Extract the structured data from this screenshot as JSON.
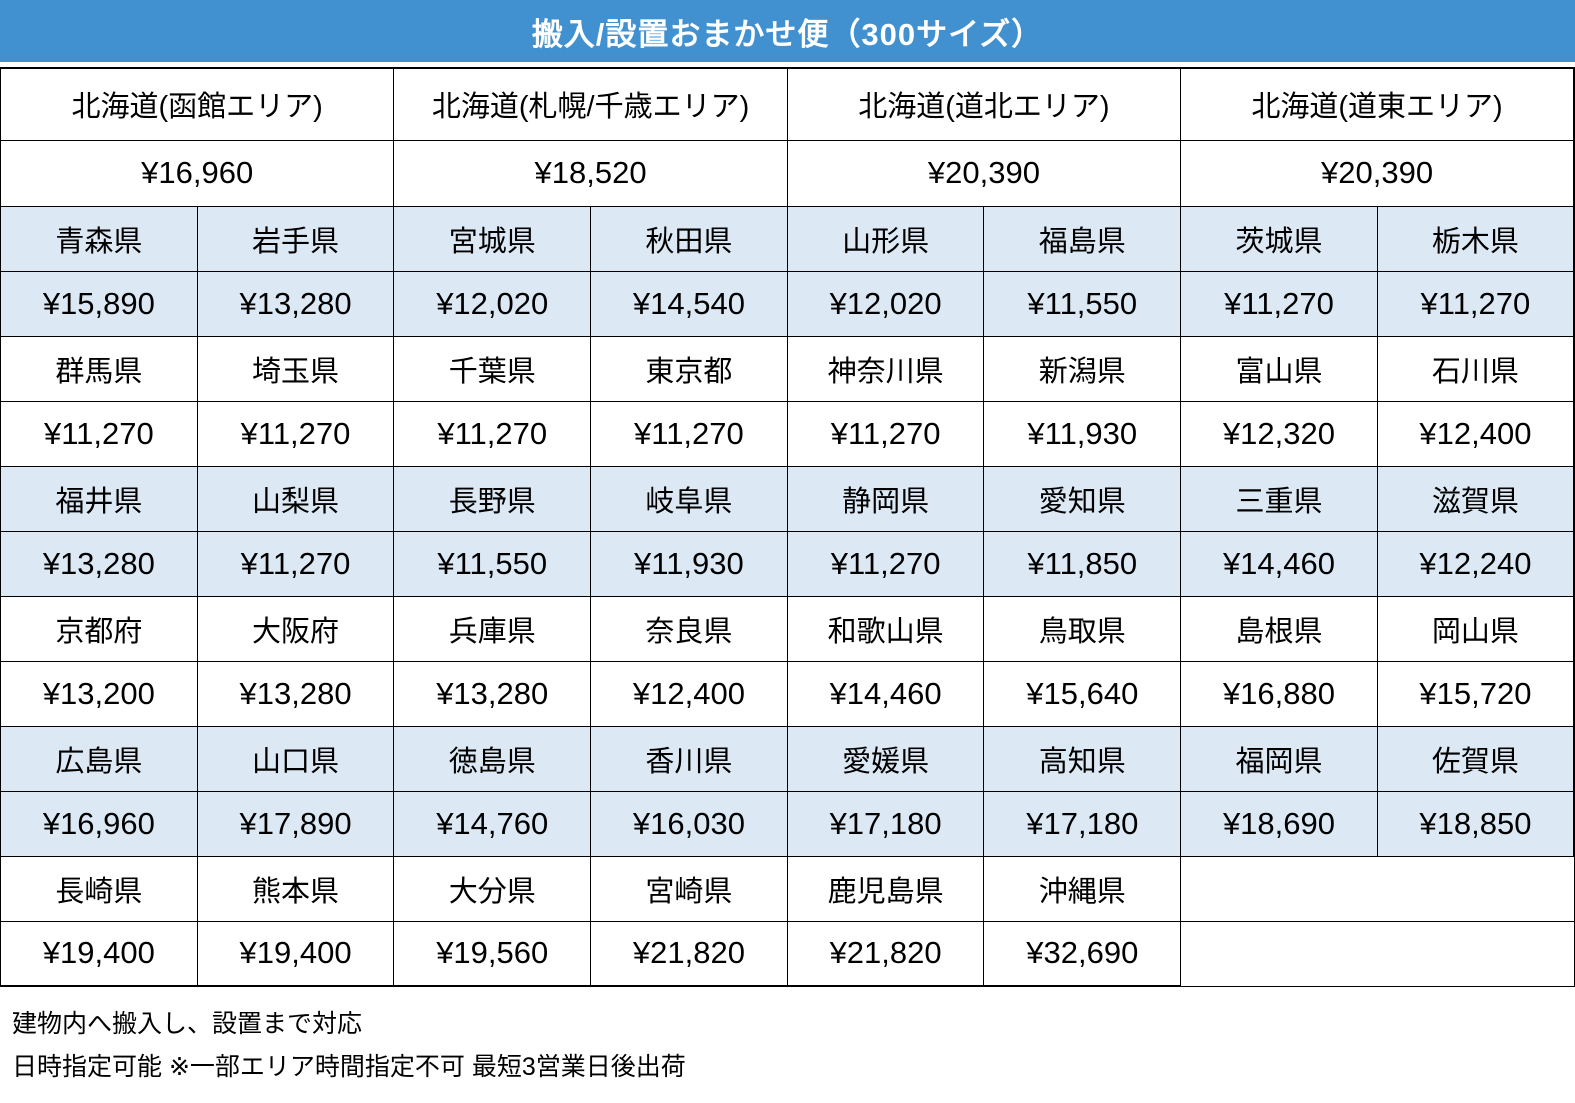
{
  "colors": {
    "header_bg": "#4190D0",
    "header_fg": "#FFFFFF",
    "shaded_row_bg": "#DCE9F5",
    "border": "#000000",
    "text": "#000000"
  },
  "chart_data": {
    "type": "table",
    "title": "搬入/設置おまかせ便（300サイズ）",
    "currency": "JPY",
    "columns_per_row": 8,
    "hokkaido_areas": [
      {
        "name": "北海道(函館エリア)",
        "price": "¥16,960",
        "price_value": 16960
      },
      {
        "name": "北海道(札幌/千歳エリア)",
        "price": "¥18,520",
        "price_value": 18520
      },
      {
        "name": "北海道(道北エリア)",
        "price": "¥20,390",
        "price_value": 20390
      },
      {
        "name": "北海道(道東エリア)",
        "price": "¥20,390",
        "price_value": 20390
      }
    ],
    "prefecture_blocks": [
      {
        "shaded": true,
        "cells": [
          {
            "name": "青森県",
            "price": "¥15,890",
            "price_value": 15890
          },
          {
            "name": "岩手県",
            "price": "¥13,280",
            "price_value": 13280
          },
          {
            "name": "宮城県",
            "price": "¥12,020",
            "price_value": 12020
          },
          {
            "name": "秋田県",
            "price": "¥14,540",
            "price_value": 14540
          },
          {
            "name": "山形県",
            "price": "¥12,020",
            "price_value": 12020
          },
          {
            "name": "福島県",
            "price": "¥11,550",
            "price_value": 11550
          },
          {
            "name": "茨城県",
            "price": "¥11,270",
            "price_value": 11270
          },
          {
            "name": "栃木県",
            "price": "¥11,270",
            "price_value": 11270
          }
        ]
      },
      {
        "shaded": false,
        "cells": [
          {
            "name": "群馬県",
            "price": "¥11,270",
            "price_value": 11270
          },
          {
            "name": "埼玉県",
            "price": "¥11,270",
            "price_value": 11270
          },
          {
            "name": "千葉県",
            "price": "¥11,270",
            "price_value": 11270
          },
          {
            "name": "東京都",
            "price": "¥11,270",
            "price_value": 11270
          },
          {
            "name": "神奈川県",
            "price": "¥11,270",
            "price_value": 11270
          },
          {
            "name": "新潟県",
            "price": "¥11,930",
            "price_value": 11930
          },
          {
            "name": "富山県",
            "price": "¥12,320",
            "price_value": 12320
          },
          {
            "name": "石川県",
            "price": "¥12,400",
            "price_value": 12400
          }
        ]
      },
      {
        "shaded": true,
        "cells": [
          {
            "name": "福井県",
            "price": "¥13,280",
            "price_value": 13280
          },
          {
            "name": "山梨県",
            "price": "¥11,270",
            "price_value": 11270
          },
          {
            "name": "長野県",
            "price": "¥11,550",
            "price_value": 11550
          },
          {
            "name": "岐阜県",
            "price": "¥11,930",
            "price_value": 11930
          },
          {
            "name": "静岡県",
            "price": "¥11,270",
            "price_value": 11270
          },
          {
            "name": "愛知県",
            "price": "¥11,850",
            "price_value": 11850
          },
          {
            "name": "三重県",
            "price": "¥14,460",
            "price_value": 14460
          },
          {
            "name": "滋賀県",
            "price": "¥12,240",
            "price_value": 12240
          }
        ]
      },
      {
        "shaded": false,
        "cells": [
          {
            "name": "京都府",
            "price": "¥13,200",
            "price_value": 13200
          },
          {
            "name": "大阪府",
            "price": "¥13,280",
            "price_value": 13280
          },
          {
            "name": "兵庫県",
            "price": "¥13,280",
            "price_value": 13280
          },
          {
            "name": "奈良県",
            "price": "¥12,400",
            "price_value": 12400
          },
          {
            "name": "和歌山県",
            "price": "¥14,460",
            "price_value": 14460
          },
          {
            "name": "鳥取県",
            "price": "¥15,640",
            "price_value": 15640
          },
          {
            "name": "島根県",
            "price": "¥16,880",
            "price_value": 16880
          },
          {
            "name": "岡山県",
            "price": "¥15,720",
            "price_value": 15720
          }
        ]
      },
      {
        "shaded": true,
        "cells": [
          {
            "name": "広島県",
            "price": "¥16,960",
            "price_value": 16960
          },
          {
            "name": "山口県",
            "price": "¥17,890",
            "price_value": 17890
          },
          {
            "name": "徳島県",
            "price": "¥14,760",
            "price_value": 14760
          },
          {
            "name": "香川県",
            "price": "¥16,030",
            "price_value": 16030
          },
          {
            "name": "愛媛県",
            "price": "¥17,180",
            "price_value": 17180
          },
          {
            "name": "高知県",
            "price": "¥17,180",
            "price_value": 17180
          },
          {
            "name": "福岡県",
            "price": "¥18,690",
            "price_value": 18690
          },
          {
            "name": "佐賀県",
            "price": "¥18,850",
            "price_value": 18850
          }
        ]
      },
      {
        "shaded": false,
        "cells": [
          {
            "name": "長崎県",
            "price": "¥19,400",
            "price_value": 19400
          },
          {
            "name": "熊本県",
            "price": "¥19,400",
            "price_value": 19400
          },
          {
            "name": "大分県",
            "price": "¥19,560",
            "price_value": 19560
          },
          {
            "name": "宮崎県",
            "price": "¥21,820",
            "price_value": 21820
          },
          {
            "name": "鹿児島県",
            "price": "¥21,820",
            "price_value": 21820
          },
          {
            "name": "沖縄県",
            "price": "¥32,690",
            "price_value": 32690
          }
        ]
      }
    ],
    "notes": [
      "建物内へ搬入し、設置まで対応",
      "日時指定可能 ※一部エリア時間指定不可 最短3営業日後出荷"
    ]
  }
}
